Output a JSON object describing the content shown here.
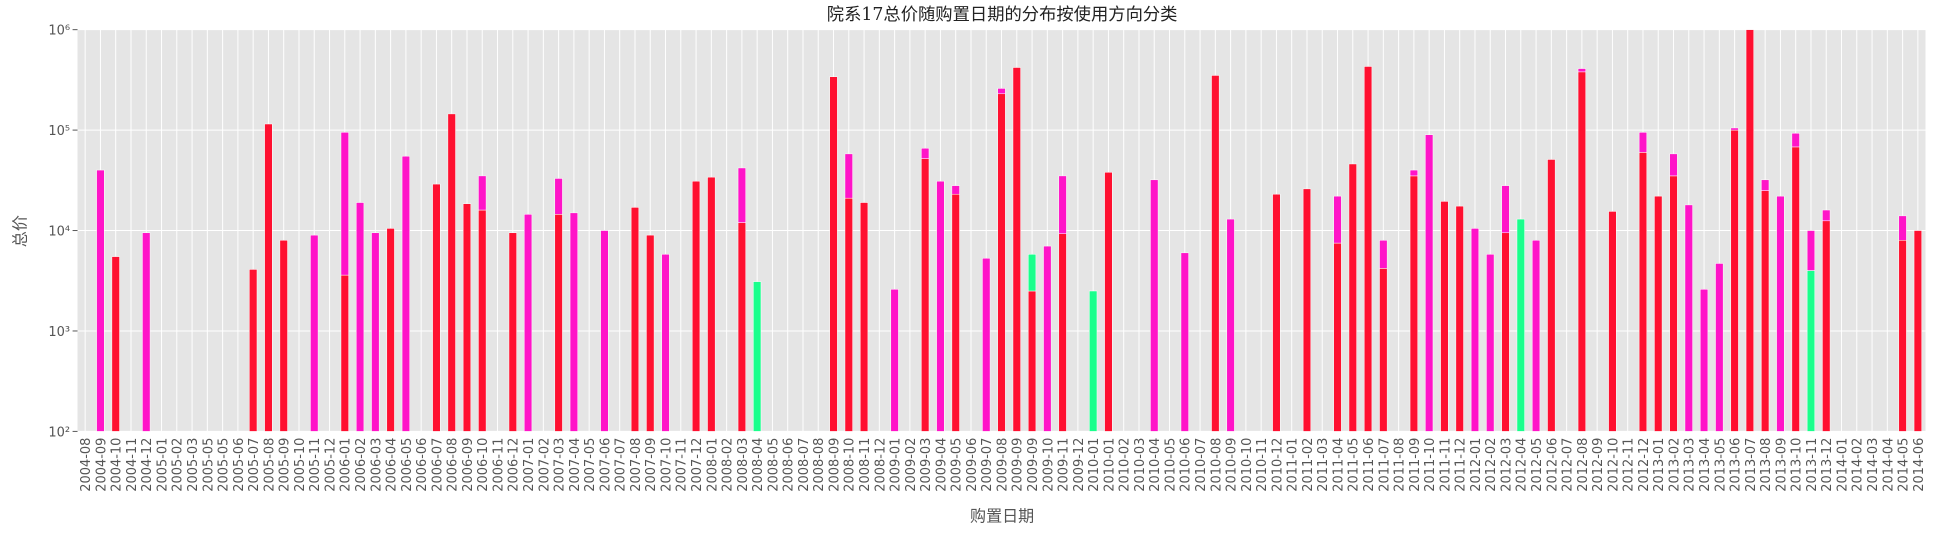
{
  "chart_data": {
    "type": "bar",
    "stacked": true,
    "log_y": true,
    "grid": true,
    "title": "院系17总价随购置日期的分布按使用方向分类",
    "x_label": "购置日期",
    "y_label": "总价",
    "categories": [
      "2004-08",
      "2004-09",
      "2004-10",
      "2004-11",
      "2004-12",
      "2005-01",
      "2005-02",
      "2005-03",
      "2005-05",
      "2005-05",
      "2005-06",
      "2005-07",
      "2005-08",
      "2005-09",
      "2005-10",
      "2005-11",
      "2005-12",
      "2006-01",
      "2006-02",
      "2006-03",
      "2006-04",
      "2006-05",
      "2006-06",
      "2006-07",
      "2006-08",
      "2006-09",
      "2006-10",
      "2006-11",
      "2006-12",
      "2007-01",
      "2007-02",
      "2007-03",
      "2007-04",
      "2007-05",
      "2007-06",
      "2007-07",
      "2007-08",
      "2007-09",
      "2007-10",
      "2007-11",
      "2007-12",
      "2008-01",
      "2008-02",
      "2008-03",
      "2008-04",
      "2008-05",
      "2008-06",
      "2008-07",
      "2008-08",
      "2008-09",
      "2008-10",
      "2008-11",
      "2008-12",
      "2009-01",
      "2009-02",
      "2009-03",
      "2009-04",
      "2009-05",
      "2009-06",
      "2009-07",
      "2009-08",
      "2009-09",
      "2009-09",
      "2009-10",
      "2009-11",
      "2009-12",
      "2010-01",
      "2010-01",
      "2010-02",
      "2010-03",
      "2010-04",
      "2010-05",
      "2010-06",
      "2010-07",
      "2010-08",
      "2010-09",
      "2010-10",
      "2010-11",
      "2010-12",
      "2011-01",
      "2011-02",
      "2011-03",
      "2011-04",
      "2011-05",
      "2011-06",
      "2011-07",
      "2011-08",
      "2011-09",
      "2011-10",
      "2011-11",
      "2011-12",
      "2012-01",
      "2012-02",
      "2012-03",
      "2012-04",
      "2012-05",
      "2012-06",
      "2012-07",
      "2012-08",
      "2012-09",
      "2012-10",
      "2012-11",
      "2012-12",
      "2013-01",
      "2013-02",
      "2013-03",
      "2013-04",
      "2013-05",
      "2013-06",
      "2013-07",
      "2013-08",
      "2013-09",
      "2013-10",
      "2013-11",
      "2013-12",
      "2014-01",
      "2014-02",
      "2014-03",
      "2014-04",
      "2014-05",
      "2014-06"
    ],
    "series": [
      {
        "color": "#ff1030",
        "values": [
          null,
          null,
          5500,
          null,
          null,
          null,
          null,
          null,
          null,
          null,
          null,
          4100,
          115000,
          8000,
          null,
          null,
          null,
          3600,
          null,
          null,
          10500,
          null,
          null,
          29000,
          145000,
          18500,
          16000,
          null,
          9500,
          null,
          null,
          14500,
          null,
          null,
          null,
          null,
          17000,
          9000,
          null,
          null,
          31000,
          34000,
          null,
          12000,
          null,
          null,
          null,
          null,
          null,
          340000,
          21000,
          19000,
          null,
          null,
          null,
          52000,
          null,
          23000,
          null,
          null,
          230000,
          420000,
          2500,
          null,
          9300,
          null,
          null,
          38000,
          null,
          null,
          null,
          null,
          null,
          null,
          350000,
          null,
          null,
          null,
          23000,
          null,
          26000,
          null,
          7500,
          46000,
          430000,
          4200,
          null,
          35000,
          null,
          19500,
          17500,
          null,
          null,
          9500,
          null,
          null,
          51000,
          null,
          380000,
          null,
          15500,
          null,
          60000,
          22000,
          35000,
          null,
          null,
          null,
          100000,
          1000000,
          25000,
          null,
          68000,
          null,
          12500,
          null,
          null,
          null,
          null,
          8000,
          10000
        ]
      },
      {
        "color": "#1aff8c",
        "values": [
          null,
          null,
          null,
          null,
          null,
          null,
          null,
          null,
          null,
          null,
          null,
          null,
          null,
          null,
          null,
          null,
          null,
          null,
          null,
          null,
          null,
          null,
          null,
          null,
          null,
          null,
          null,
          null,
          null,
          null,
          null,
          null,
          null,
          null,
          null,
          null,
          null,
          null,
          null,
          null,
          null,
          null,
          null,
          null,
          3100,
          null,
          null,
          null,
          null,
          null,
          null,
          null,
          null,
          null,
          null,
          null,
          null,
          null,
          null,
          null,
          null,
          null,
          3300,
          null,
          null,
          null,
          2500,
          null,
          null,
          null,
          null,
          null,
          null,
          null,
          null,
          null,
          null,
          null,
          null,
          null,
          null,
          null,
          null,
          null,
          null,
          null,
          null,
          null,
          null,
          null,
          null,
          null,
          null,
          null,
          13000,
          null,
          null,
          null,
          null,
          null,
          null,
          null,
          null,
          null,
          null,
          null,
          null,
          null,
          null,
          null,
          null,
          null,
          null,
          4000,
          null,
          null,
          null,
          null,
          null,
          null,
          null
        ]
      },
      {
        "color": "#ff14c8",
        "values": [
          null,
          40000,
          null,
          null,
          9500,
          null,
          null,
          null,
          null,
          null,
          null,
          null,
          null,
          null,
          null,
          9000,
          null,
          91400,
          19000,
          9500,
          null,
          55000,
          null,
          null,
          null,
          null,
          19000,
          null,
          null,
          14500,
          null,
          18500,
          15000,
          null,
          10000,
          null,
          null,
          null,
          5800,
          null,
          null,
          null,
          null,
          30000,
          null,
          null,
          null,
          null,
          null,
          null,
          37000,
          null,
          null,
          2600,
          null,
          14000,
          31000,
          5000,
          null,
          5300,
          30000,
          null,
          null,
          7000,
          25700,
          null,
          null,
          null,
          null,
          null,
          32000,
          null,
          6000,
          null,
          null,
          13000,
          null,
          null,
          null,
          null,
          null,
          null,
          14500,
          null,
          null,
          3800,
          null,
          5000,
          90000,
          null,
          null,
          10500,
          5800,
          18500,
          null,
          8000,
          null,
          null,
          30000,
          null,
          null,
          null,
          35000,
          null,
          23000,
          18000,
          2600,
          4700,
          5000,
          null,
          7000,
          22000,
          25000,
          6000,
          3500,
          null,
          null,
          null,
          null,
          6000,
          null
        ]
      }
    ],
    "ylim": [
      100,
      1000000
    ],
    "yticks": [
      {
        "value": 100,
        "label": "10²"
      },
      {
        "value": 1000,
        "label": "10³"
      },
      {
        "value": 10000,
        "label": "10⁴"
      },
      {
        "value": 100000,
        "label": "10⁵"
      },
      {
        "value": 1000000,
        "label": "10⁶"
      }
    ]
  }
}
